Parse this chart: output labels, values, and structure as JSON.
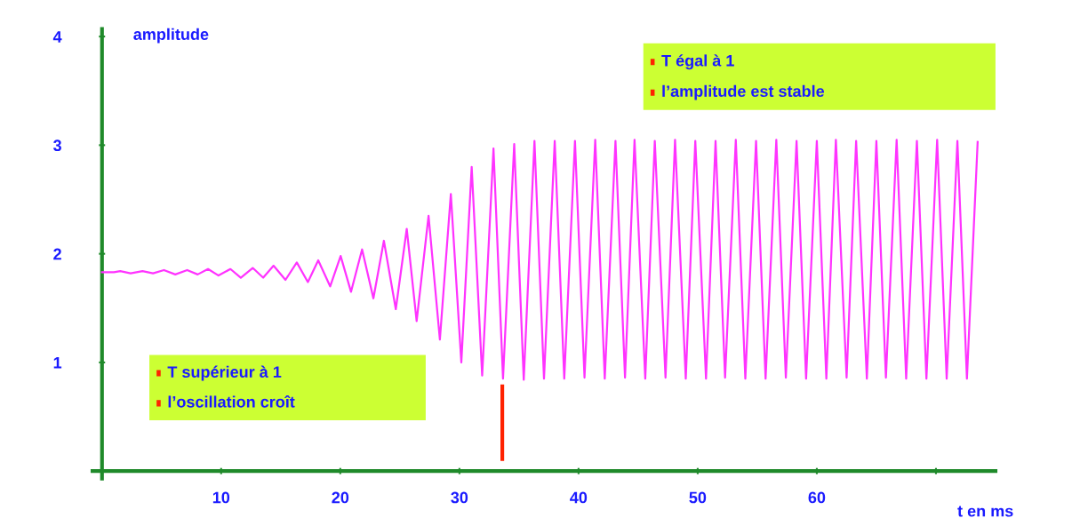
{
  "chart_data": {
    "type": "line",
    "xlabel": "t en ms",
    "ylabel": "amplitude",
    "xlim": [
      -0.8,
      75
    ],
    "ylim": [
      -0.07,
      4.07
    ],
    "xticks": [
      10,
      20,
      30,
      40,
      50,
      60,
      {
        "value": 70,
        "label": null
      }
    ],
    "yticks": [
      1,
      2,
      3,
      4
    ],
    "grid": false,
    "legend": false,
    "marker": "none",
    "line_style": "solid",
    "annotations": [
      "T supérieur à 1",
      "l’oscillation croît",
      "T égal à 1",
      "l’amplitude est stable"
    ],
    "series": [
      {
        "color": "#ff33ff",
        "x": [
          0,
          1.0,
          1.53,
          2.4,
          3.4,
          4.28,
          5.2,
          6.15,
          7.15,
          8.03,
          8.9,
          9.78,
          10.78,
          11.65,
          12.65,
          13.53,
          14.4,
          15.4,
          16.35,
          17.28,
          18.15,
          19.15,
          20.03,
          20.9,
          21.83,
          22.78,
          23.66,
          24.66,
          25.58,
          26.41,
          27.41,
          28.36,
          29.28,
          30.16,
          31.03,
          31.91,
          32.86,
          33.66,
          34.6,
          35.4,
          36.3,
          37.1,
          38.0,
          38.8,
          39.7,
          40.5,
          41.4,
          42.2,
          43.1,
          43.9,
          44.7,
          45.6,
          46.4,
          47.3,
          48.1,
          49.0,
          49.8,
          50.7,
          51.5,
          52.3,
          53.2,
          54.0,
          54.9,
          55.7,
          56.6,
          57.4,
          58.3,
          59.1,
          60.0,
          60.8,
          61.6,
          62.5,
          63.3,
          64.2,
          65.0,
          65.8,
          66.7,
          67.5,
          68.4,
          69.2,
          70.1,
          70.9,
          71.8,
          72.6,
          73.5
        ],
        "values": [
          1.83,
          1.83,
          1.84,
          1.82,
          1.84,
          1.82,
          1.85,
          1.81,
          1.85,
          1.81,
          1.86,
          1.8,
          1.86,
          1.78,
          1.87,
          1.78,
          1.89,
          1.76,
          1.92,
          1.74,
          1.94,
          1.7,
          1.98,
          1.65,
          2.04,
          1.59,
          2.12,
          1.49,
          2.23,
          1.38,
          2.35,
          1.21,
          2.55,
          1.0,
          2.8,
          0.88,
          2.97,
          0.85,
          3.01,
          0.84,
          3.04,
          0.85,
          3.04,
          0.85,
          3.04,
          0.86,
          3.05,
          0.85,
          3.04,
          0.86,
          3.05,
          0.85,
          3.04,
          0.86,
          3.05,
          0.85,
          3.04,
          0.85,
          3.04,
          0.86,
          3.05,
          0.85,
          3.04,
          0.85,
          3.05,
          0.86,
          3.04,
          0.85,
          3.04,
          0.85,
          3.05,
          0.86,
          3.04,
          0.85,
          3.04,
          0.86,
          3.05,
          0.85,
          3.04,
          0.85,
          3.05,
          0.85,
          3.04,
          0.85,
          3.03
        ]
      },
      {
        "color": "#ff2200",
        "x": [
          33.6,
          33.6
        ],
        "values": [
          0.11,
          0.78
        ]
      }
    ]
  }
}
